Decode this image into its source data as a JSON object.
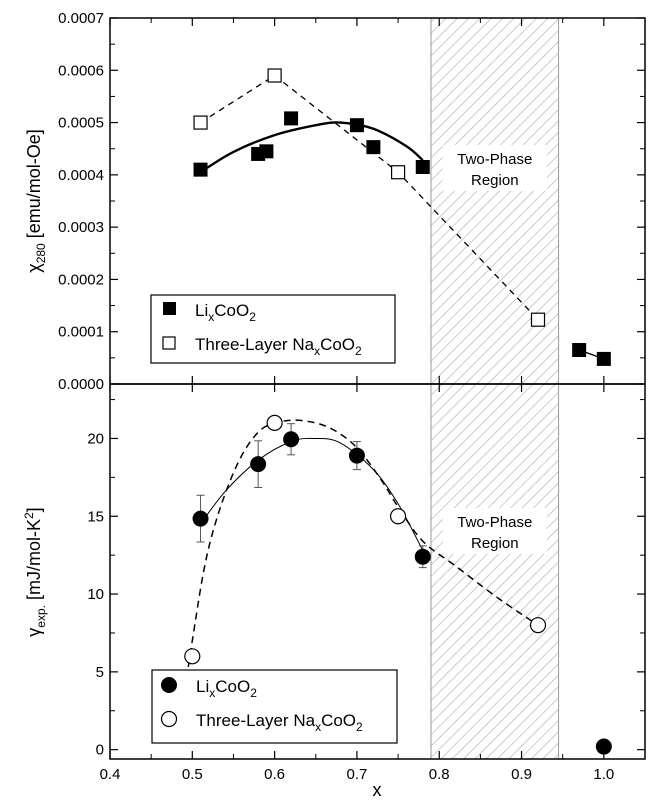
{
  "chart_data": {
    "type": "scatter",
    "x_axis": {
      "label": "x",
      "range": [
        0.4,
        1.05
      ],
      "ticks": [
        0.4,
        0.5,
        0.6,
        0.7,
        0.8,
        0.9,
        1.0
      ],
      "tick_labels": [
        "0.4",
        "0.5",
        "0.6",
        "0.7",
        "0.8",
        "0.9",
        "1.0"
      ]
    },
    "shaded_region": {
      "x_range": [
        0.79,
        0.945
      ],
      "label_line1": "Two-Phase",
      "label_line2": "Region",
      "pattern": "diagonal-hatch"
    },
    "panels": [
      {
        "id": "top",
        "y_label": {
          "main": "χ",
          "sub": "280",
          "rest": " [emu/mol-Oe]"
        },
        "y_range": [
          0,
          0.0007
        ],
        "y_ticks": [
          0,
          0.0001,
          0.0002,
          0.0003,
          0.0004,
          0.0005,
          0.0006,
          0.0007
        ],
        "y_tick_labels": [
          "0.0000",
          "0.0001",
          "0.0002",
          "0.0003",
          "0.0004",
          "0.0005",
          "0.0006",
          "0.0007"
        ],
        "legend": {
          "placement": "bottom-left",
          "entries": [
            {
              "marker": "filled-square",
              "parts": [
                "Li",
                "x",
                "CoO",
                "2"
              ]
            },
            {
              "marker": "open-square",
              "parts": [
                "Three-Layer Na",
                "x",
                "CoO",
                "2"
              ]
            }
          ]
        },
        "series": [
          {
            "marker": "filled-square",
            "points": [
              [
                0.51,
                0.00041
              ],
              [
                0.58,
                0.00044
              ],
              [
                0.59,
                0.000445
              ],
              [
                0.62,
                0.000508
              ],
              [
                0.7,
                0.000495
              ],
              [
                0.72,
                0.000453
              ],
              [
                0.78,
                0.000415
              ],
              [
                0.97,
                6.5e-05
              ],
              [
                1.0,
                4.8e-05
              ]
            ],
            "fit_curve": [
              [
                0.51,
                0.000405
              ],
              [
                0.55,
                0.000444
              ],
              [
                0.6,
                0.000476
              ],
              [
                0.65,
                0.000495
              ],
              [
                0.68,
                0.0005
              ],
              [
                0.72,
                0.000488
              ],
              [
                0.76,
                0.000455
              ],
              [
                0.78,
                0.000428
              ]
            ],
            "fit_style": "solid-thick",
            "segment": [
              [
                0.97,
                6.5e-05
              ],
              [
                1.0,
                4.8e-05
              ]
            ]
          },
          {
            "marker": "open-square",
            "points": [
              [
                0.51,
                0.0005
              ],
              [
                0.6,
                0.00059
              ],
              [
                0.75,
                0.000405
              ],
              [
                0.92,
                0.000123
              ]
            ],
            "connector_style": "dashed"
          }
        ]
      },
      {
        "id": "bottom",
        "y_label": {
          "main": "γ",
          "sub": "exp.",
          "rest": "  [mJ/mol-K",
          "sup": "2",
          "end": "]"
        },
        "y_range": [
          -0.6,
          23.5
        ],
        "y_ticks": [
          0,
          5,
          10,
          15,
          20
        ],
        "y_tick_labels": [
          "0",
          "5",
          "10",
          "15",
          "20"
        ],
        "legend": {
          "placement": "bottom-left",
          "entries": [
            {
              "marker": "filled-circle",
              "parts": [
                "Li",
                "x",
                "CoO",
                "2"
              ]
            },
            {
              "marker": "open-circle",
              "parts": [
                "Three-Layer Na",
                "x",
                "CoO",
                "2"
              ]
            }
          ]
        },
        "series": [
          {
            "marker": "filled-circle",
            "points": [
              [
                0.51,
                14.85
              ],
              [
                0.58,
                18.35
              ],
              [
                0.62,
                19.95
              ],
              [
                0.7,
                18.9
              ],
              [
                0.78,
                12.4
              ],
              [
                1.0,
                0.2
              ]
            ],
            "error": [
              1.5,
              1.5,
              1.0,
              0.9,
              0.7,
              0
            ],
            "fit_curve": [
              [
                0.51,
                14.5
              ],
              [
                0.54,
                16.6
              ],
              [
                0.58,
                18.6
              ],
              [
                0.62,
                19.8
              ],
              [
                0.65,
                20.0
              ],
              [
                0.68,
                19.7
              ],
              [
                0.72,
                18.0
              ],
              [
                0.75,
                15.8
              ],
              [
                0.78,
                12.8
              ]
            ],
            "fit_style": "solid-thin"
          },
          {
            "marker": "open-circle",
            "points": [
              [
                0.5,
                6.0
              ],
              [
                0.6,
                21.0
              ],
              [
                0.75,
                15.0
              ],
              [
                0.92,
                8.0
              ]
            ],
            "fit_curve": [
              [
                0.485,
                1.5
              ],
              [
                0.5,
                7.0
              ],
              [
                0.52,
                13.0
              ],
              [
                0.55,
                17.8
              ],
              [
                0.58,
                20.4
              ],
              [
                0.61,
                21.1
              ],
              [
                0.64,
                21.1
              ],
              [
                0.67,
                20.6
              ],
              [
                0.7,
                19.4
              ],
              [
                0.73,
                17.3
              ],
              [
                0.75,
                15.6
              ],
              [
                0.78,
                13.4
              ],
              [
                0.82,
                11.8
              ],
              [
                0.87,
                9.8
              ],
              [
                0.92,
                8.0
              ]
            ],
            "fit_style": "dashed"
          }
        ]
      }
    ]
  }
}
